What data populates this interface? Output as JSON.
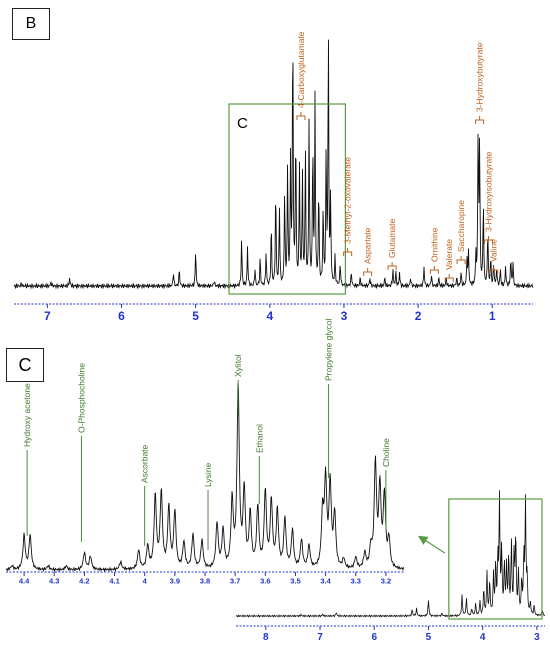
{
  "chart_data": [
    {
      "type": "line",
      "panel_label": "B",
      "xlabel": "",
      "ylabel": "",
      "x_axis": {
        "reversed": true,
        "xlim": [
          7.45,
          0.45
        ],
        "ticks": [
          7,
          6,
          5,
          4,
          3,
          2,
          1
        ],
        "tick_color": "#2233cc"
      },
      "zoom_box_label": "C",
      "zoom_box_range": [
        4.55,
        2.98
      ],
      "annotations": [
        {
          "label": "4-Carboxyglutamate",
          "x": 3.58
        },
        {
          "label": "3-Methyl-2-oxovalerate",
          "x": 2.95
        },
        {
          "label": "Aspartate",
          "x": 2.68
        },
        {
          "label": "Glutamate",
          "x": 2.35
        },
        {
          "label": "Ornithine",
          "x": 1.78
        },
        {
          "label": "Valerate",
          "x": 1.58
        },
        {
          "label": "Saccharopine",
          "x": 1.42
        },
        {
          "label": "3-Hydroxybutyrate",
          "x": 1.17
        },
        {
          "label": "3-Hydroxyisobutyrate",
          "x": 1.05
        },
        {
          "label": "Valine",
          "x": 0.98
        }
      ],
      "peaks": [
        {
          "x": 7.35,
          "h": 0.01
        },
        {
          "x": 6.95,
          "h": 0.015
        },
        {
          "x": 6.7,
          "h": 0.03
        },
        {
          "x": 5.3,
          "h": 0.05
        },
        {
          "x": 5.22,
          "h": 0.06
        },
        {
          "x": 5.0,
          "h": 0.13
        },
        {
          "x": 4.75,
          "h": 0.02
        },
        {
          "x": 4.38,
          "h": 0.17
        },
        {
          "x": 4.3,
          "h": 0.14
        },
        {
          "x": 4.2,
          "h": 0.06
        },
        {
          "x": 4.13,
          "h": 0.1
        },
        {
          "x": 4.05,
          "h": 0.12
        },
        {
          "x": 3.98,
          "h": 0.22
        },
        {
          "x": 3.92,
          "h": 0.35
        },
        {
          "x": 3.87,
          "h": 0.28
        },
        {
          "x": 3.8,
          "h": 0.33
        },
        {
          "x": 3.76,
          "h": 0.42
        },
        {
          "x": 3.72,
          "h": 0.45
        },
        {
          "x": 3.69,
          "h": 0.95
        },
        {
          "x": 3.65,
          "h": 0.55
        },
        {
          "x": 3.6,
          "h": 0.42
        },
        {
          "x": 3.56,
          "h": 0.4
        },
        {
          "x": 3.52,
          "h": 0.48
        },
        {
          "x": 3.47,
          "h": 0.6
        },
        {
          "x": 3.42,
          "h": 0.5
        },
        {
          "x": 3.39,
          "h": 0.66
        },
        {
          "x": 3.34,
          "h": 0.35
        },
        {
          "x": 3.28,
          "h": 0.28
        },
        {
          "x": 3.24,
          "h": 0.48
        },
        {
          "x": 3.21,
          "h": 0.92
        },
        {
          "x": 3.18,
          "h": 0.3
        },
        {
          "x": 3.12,
          "h": 0.1
        },
        {
          "x": 3.05,
          "h": 0.08
        },
        {
          "x": 2.9,
          "h": 0.05
        },
        {
          "x": 2.78,
          "h": 0.03
        },
        {
          "x": 2.65,
          "h": 0.03
        },
        {
          "x": 2.45,
          "h": 0.03
        },
        {
          "x": 2.34,
          "h": 0.06
        },
        {
          "x": 2.3,
          "h": 0.05
        },
        {
          "x": 2.25,
          "h": 0.05
        },
        {
          "x": 2.1,
          "h": 0.03
        },
        {
          "x": 1.92,
          "h": 0.07
        },
        {
          "x": 1.82,
          "h": 0.04
        },
        {
          "x": 1.72,
          "h": 0.03
        },
        {
          "x": 1.62,
          "h": 0.03
        },
        {
          "x": 1.48,
          "h": 0.03
        },
        {
          "x": 1.42,
          "h": 0.05
        },
        {
          "x": 1.34,
          "h": 0.1
        },
        {
          "x": 1.32,
          "h": 0.12
        },
        {
          "x": 1.22,
          "h": 0.11
        },
        {
          "x": 1.19,
          "h": 0.55
        },
        {
          "x": 1.17,
          "h": 0.5
        },
        {
          "x": 1.12,
          "h": 0.3
        },
        {
          "x": 1.06,
          "h": 0.2
        },
        {
          "x": 1.02,
          "h": 0.1
        },
        {
          "x": 0.98,
          "h": 0.08
        },
        {
          "x": 0.94,
          "h": 0.06
        },
        {
          "x": 0.89,
          "h": 0.06
        },
        {
          "x": 0.82,
          "h": 0.07
        },
        {
          "x": 0.75,
          "h": 0.1
        },
        {
          "x": 0.72,
          "h": 0.08
        }
      ]
    },
    {
      "type": "line",
      "panel_label": "C",
      "xlabel": "",
      "ylabel": "",
      "x_axis": {
        "reversed": true,
        "xlim": [
          4.46,
          3.14
        ],
        "ticks": [
          4.4,
          4.3,
          4.2,
          4.1,
          4.0,
          3.9,
          3.8,
          3.7,
          3.6,
          3.5,
          3.4,
          3.3,
          3.2
        ],
        "tick_labels": [
          "4.4",
          "4.3",
          "4.2",
          "4.1",
          "4",
          "3.9",
          "3.8",
          "3.7",
          "3.6",
          "3.5",
          "3.4",
          "3.3",
          "3.2"
        ],
        "tick_color": "#2233cc"
      },
      "annotations": [
        {
          "label": "Hydroxy acetone",
          "x": 4.39
        },
        {
          "label": "O-Phosphocholine",
          "x": 4.21
        },
        {
          "label": "Ascorbate",
          "x": 4.0
        },
        {
          "label": "Lysine",
          "x": 3.79
        },
        {
          "label": "Xylitol",
          "x": 3.69
        },
        {
          "label": "Ethanol",
          "x": 3.62
        },
        {
          "label": "Propylene glycol",
          "x": 3.39
        },
        {
          "label": "Choline",
          "x": 3.2
        }
      ],
      "peaks": [
        {
          "x": 4.44,
          "h": 0.02
        },
        {
          "x": 4.4,
          "h": 0.18
        },
        {
          "x": 4.38,
          "h": 0.18
        },
        {
          "x": 4.32,
          "h": 0.02
        },
        {
          "x": 4.26,
          "h": 0.02
        },
        {
          "x": 4.2,
          "h": 0.09
        },
        {
          "x": 4.18,
          "h": 0.07
        },
        {
          "x": 4.08,
          "h": 0.04
        },
        {
          "x": 4.02,
          "h": 0.1
        },
        {
          "x": 3.99,
          "h": 0.12
        },
        {
          "x": 3.965,
          "h": 0.38
        },
        {
          "x": 3.945,
          "h": 0.4
        },
        {
          "x": 3.92,
          "h": 0.32
        },
        {
          "x": 3.9,
          "h": 0.3
        },
        {
          "x": 3.87,
          "h": 0.14
        },
        {
          "x": 3.84,
          "h": 0.18
        },
        {
          "x": 3.81,
          "h": 0.15
        },
        {
          "x": 3.76,
          "h": 0.24
        },
        {
          "x": 3.74,
          "h": 0.2
        },
        {
          "x": 3.71,
          "h": 0.35
        },
        {
          "x": 3.69,
          "h": 0.95
        },
        {
          "x": 3.67,
          "h": 0.4
        },
        {
          "x": 3.65,
          "h": 0.28
        },
        {
          "x": 3.625,
          "h": 0.32
        },
        {
          "x": 3.6,
          "h": 0.4
        },
        {
          "x": 3.58,
          "h": 0.35
        },
        {
          "x": 3.56,
          "h": 0.3
        },
        {
          "x": 3.535,
          "h": 0.26
        },
        {
          "x": 3.51,
          "h": 0.2
        },
        {
          "x": 3.48,
          "h": 0.15
        },
        {
          "x": 3.455,
          "h": 0.12
        },
        {
          "x": 3.41,
          "h": 0.28
        },
        {
          "x": 3.4,
          "h": 0.45
        },
        {
          "x": 3.385,
          "h": 0.44
        },
        {
          "x": 3.37,
          "h": 0.28
        },
        {
          "x": 3.34,
          "h": 0.05
        },
        {
          "x": 3.3,
          "h": 0.06
        },
        {
          "x": 3.27,
          "h": 0.08
        },
        {
          "x": 3.25,
          "h": 0.1
        },
        {
          "x": 3.235,
          "h": 0.55
        },
        {
          "x": 3.22,
          "h": 0.42
        },
        {
          "x": 3.205,
          "h": 0.38
        },
        {
          "x": 3.19,
          "h": 0.15
        }
      ]
    }
  ]
}
